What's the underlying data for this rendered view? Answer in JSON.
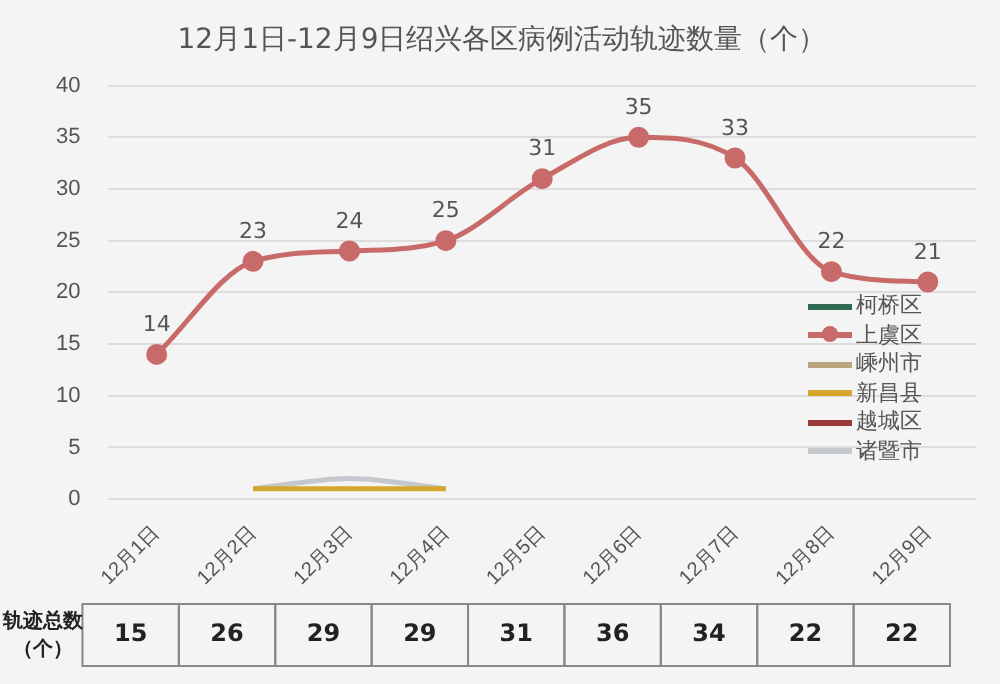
{
  "chart_data": {
    "type": "line",
    "title": "12月1日-12月9日绍兴各区病例活动轨迹数量（个）",
    "categories": [
      "12月1日",
      "12月2日",
      "12月3日",
      "12月4日",
      "12月5日",
      "12月6日",
      "12月7日",
      "12月8日",
      "12月9日"
    ],
    "series": [
      {
        "name": "柯桥区",
        "color": "#2e6b50",
        "values": [
          null,
          null,
          null,
          null,
          null,
          null,
          null,
          null,
          null
        ]
      },
      {
        "name": "上虞区",
        "color": "#c96a6a",
        "marker": "circle",
        "values": [
          14,
          23,
          24,
          25,
          31,
          35,
          33,
          22,
          21
        ],
        "value_labels": [
          "14",
          "23",
          "24",
          "25",
          "31",
          "35",
          "33",
          "22",
          "21"
        ]
      },
      {
        "name": "嵊州市",
        "color": "#b8a47e",
        "values": [
          null,
          null,
          null,
          null,
          null,
          null,
          null,
          null,
          null
        ]
      },
      {
        "name": "新昌县",
        "color": "#d4a72c",
        "values": [
          null,
          1,
          1,
          1,
          null,
          null,
          null,
          null,
          null
        ]
      },
      {
        "name": "越城区",
        "color": "#9b3a3a",
        "values": [
          null,
          null,
          null,
          null,
          null,
          null,
          null,
          null,
          null
        ]
      },
      {
        "name": "诸暨市",
        "color": "#c4c8cc",
        "values": [
          null,
          1,
          2,
          1,
          null,
          null,
          null,
          null,
          null
        ]
      }
    ],
    "ylim": [
      0,
      40
    ],
    "yticks": [
      0,
      5,
      10,
      15,
      20,
      25,
      30,
      35,
      40
    ],
    "grid": "y",
    "legend": "right",
    "totals": [
      "15",
      "26",
      "29",
      "29",
      "31",
      "36",
      "34",
      "22",
      "22"
    ],
    "annotations": [
      "轨迹总数（个）"
    ]
  }
}
